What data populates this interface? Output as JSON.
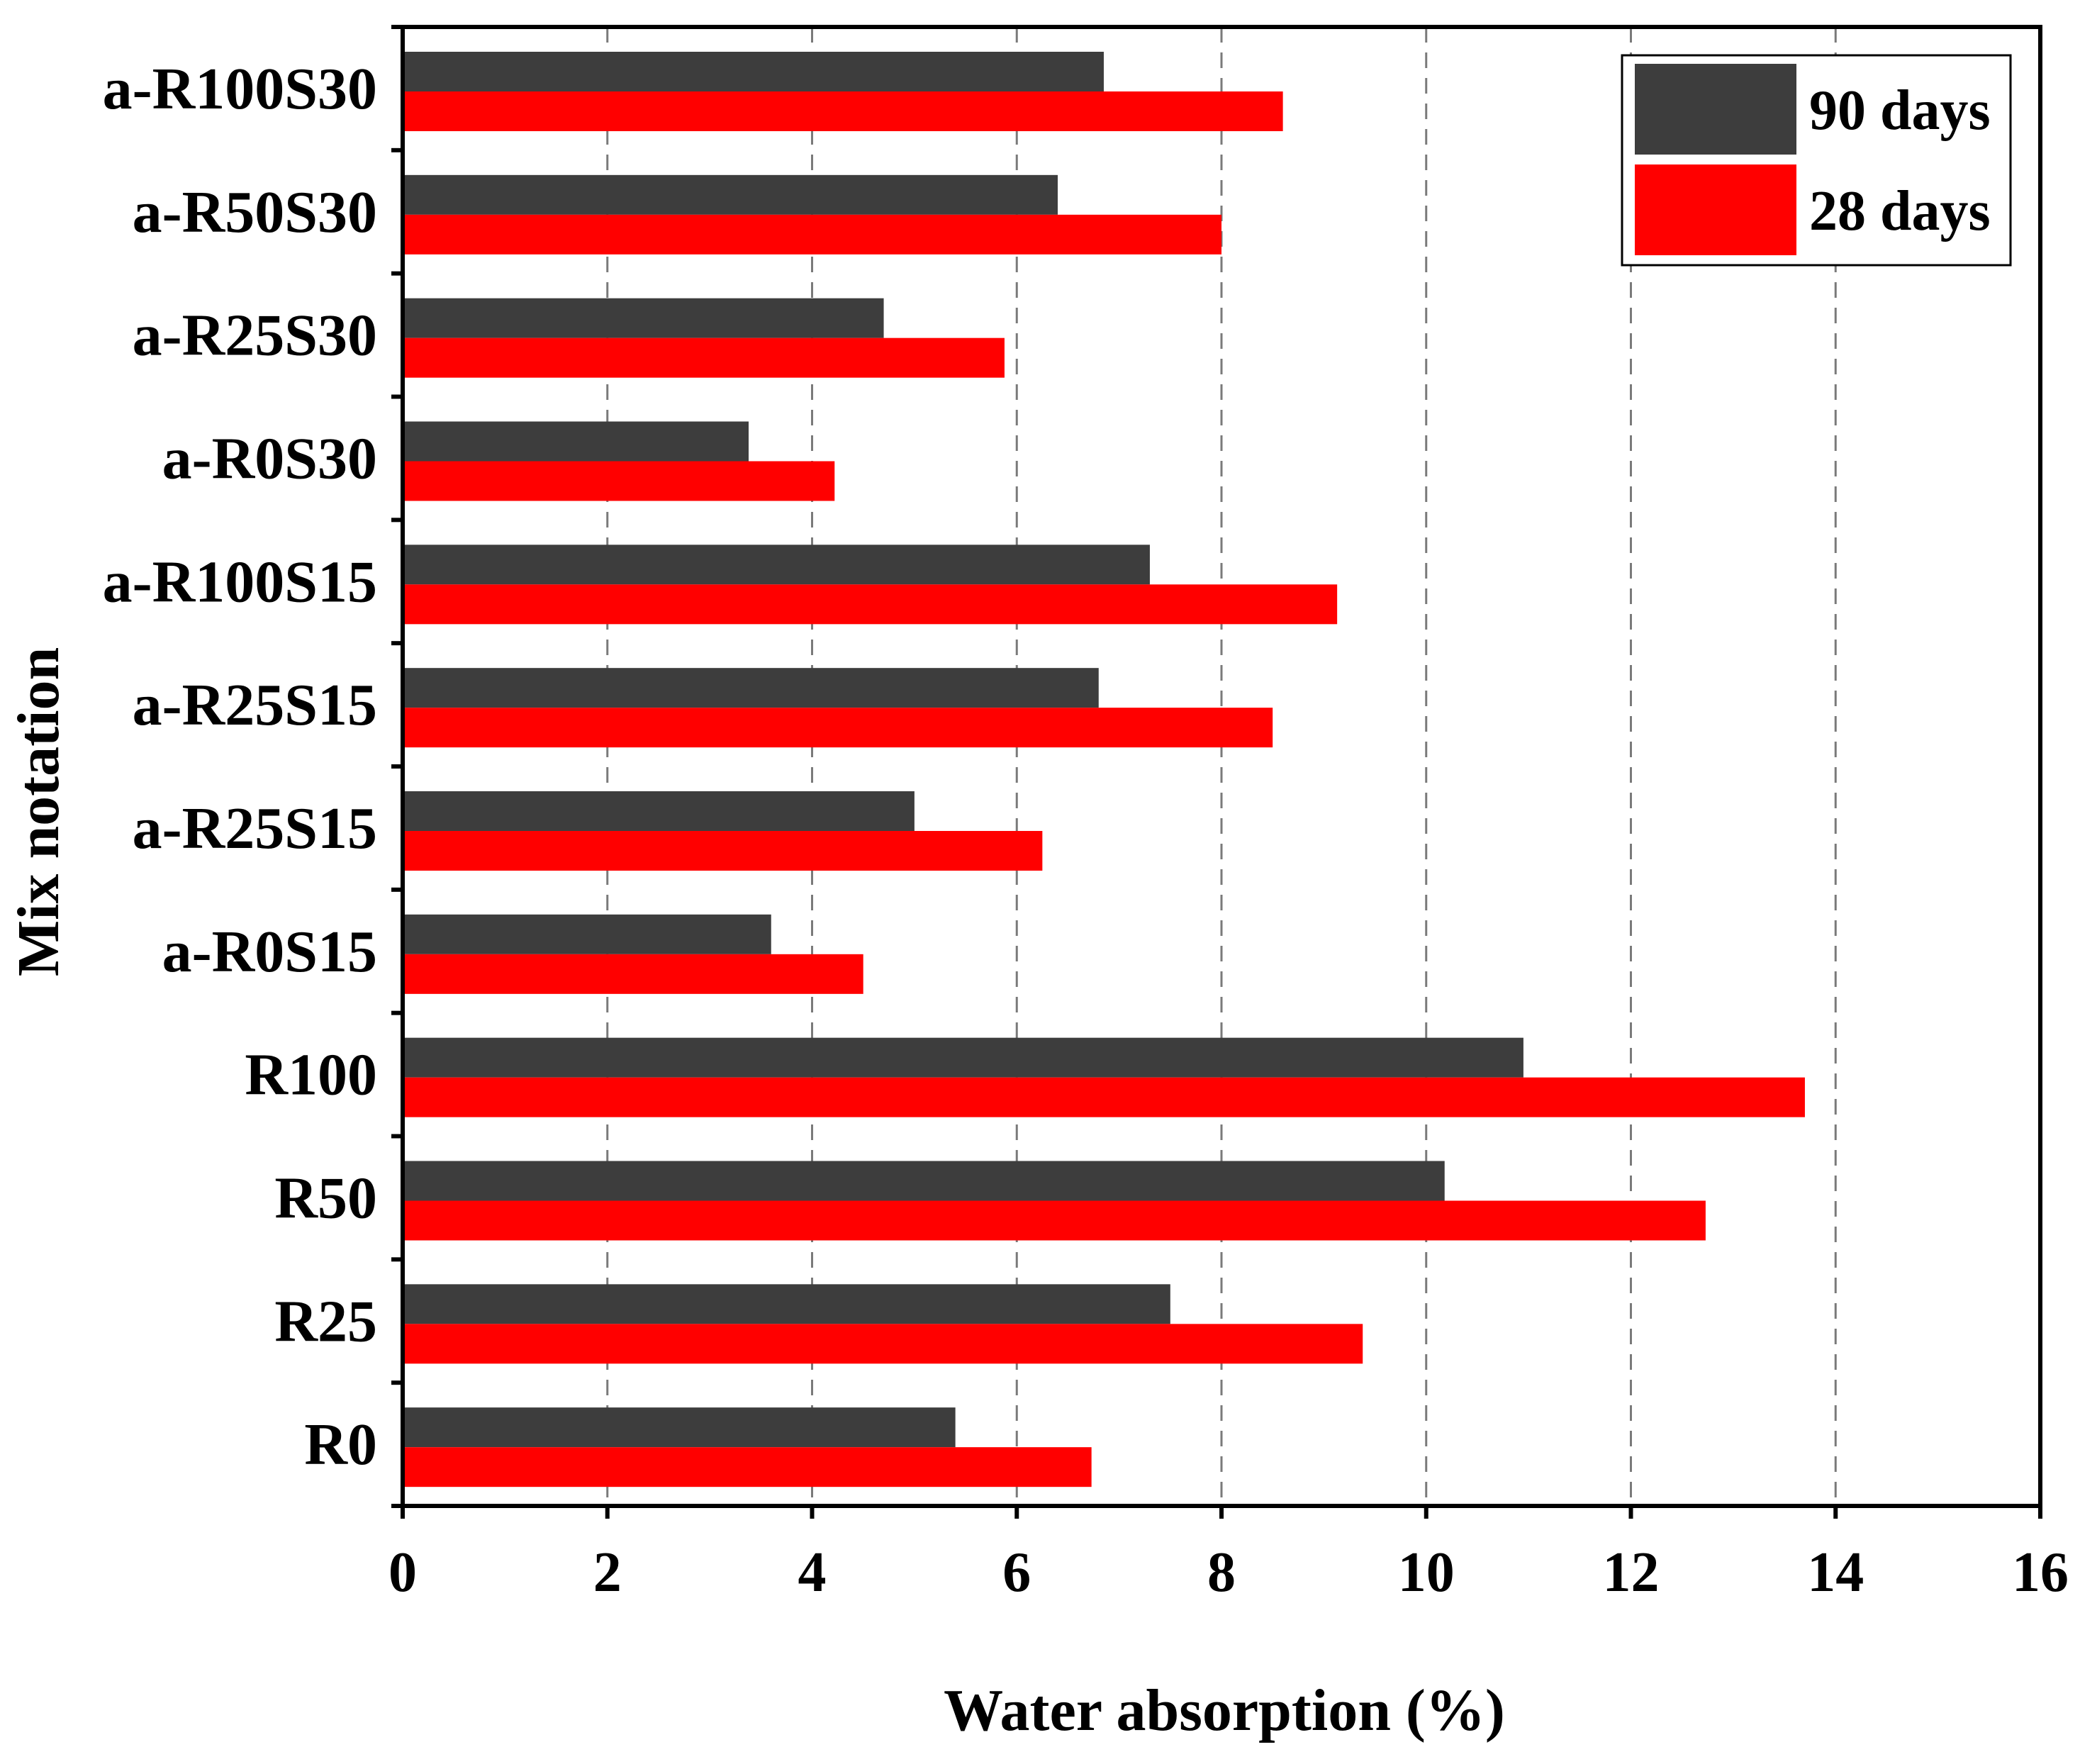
{
  "chart_data": {
    "type": "bar",
    "orientation": "horizontal",
    "title": "",
    "xlabel": "Water absorption (%)",
    "ylabel": "Mix notation",
    "xlim": [
      0,
      16
    ],
    "x_ticks": [
      "0",
      "2",
      "4",
      "6",
      "8",
      "10",
      "12",
      "14",
      "16"
    ],
    "grid": "vertical dashed",
    "legend_position": "top-right",
    "categories": [
      "a-R100S30",
      "a-R50S30",
      "a-R25S30",
      "a-R0S30",
      "a-R100S15",
      "a-R25S15",
      "a-R25S15",
      "a-R0S15",
      "R100",
      "R50",
      "R25",
      "R0"
    ],
    "series": [
      {
        "name": "90 days",
        "color": "#3d3d3d",
        "values": [
          6.85,
          6.4,
          4.7,
          3.38,
          7.3,
          6.8,
          5.0,
          3.6,
          10.95,
          10.18,
          7.5,
          5.4
        ]
      },
      {
        "name": "28 days",
        "color": "#ff0000",
        "values": [
          8.6,
          8.0,
          5.88,
          4.22,
          9.13,
          8.5,
          6.25,
          4.5,
          13.7,
          12.73,
          9.38,
          6.73
        ]
      }
    ]
  }
}
